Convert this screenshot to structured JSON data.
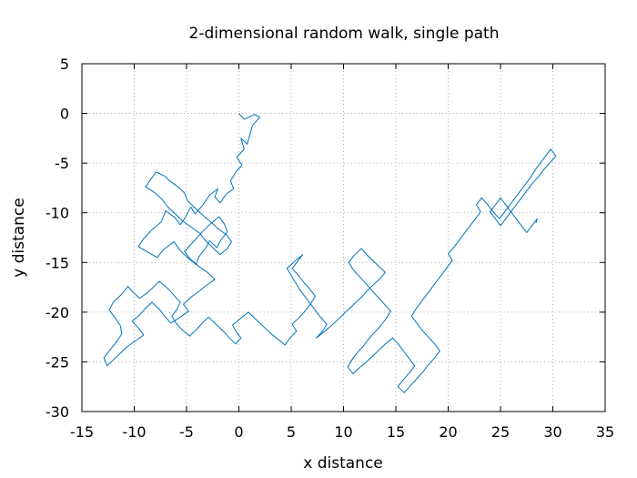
{
  "chart_data": {
    "type": "line",
    "title": "2-dimensional random walk, single path",
    "xlabel": "x distance",
    "ylabel": "y distance",
    "xlim": [
      -15,
      35
    ],
    "ylim": [
      -30,
      5
    ],
    "x_ticks": [
      -15,
      -10,
      -5,
      0,
      5,
      10,
      15,
      20,
      25,
      30,
      35
    ],
    "y_ticks": [
      5,
      0,
      -5,
      -10,
      -15,
      -20,
      -25,
      -30
    ],
    "x_tick_labels": [
      "-15",
      "-10",
      "-5",
      "0",
      "5",
      "10",
      "15",
      "20",
      "25",
      "30",
      "35"
    ],
    "y_tick_labels": [
      "5",
      "0",
      "-5",
      "-10",
      "-15",
      "-20",
      "-25",
      "-30"
    ],
    "grid": true,
    "legend": "none",
    "series_color": "#0072bd",
    "series": [
      {
        "x": [
          0,
          0.5,
          1.5,
          2,
          1.3,
          1,
          0.8,
          0.2,
          0.5,
          -0.2,
          0.3,
          -0.3,
          -0.8,
          -0.5,
          -1.2,
          -1.8,
          -2.3,
          -2.0,
          -2.8,
          -3.5,
          -4.2,
          -4.6,
          -5.2,
          -5.6,
          -6.1,
          -7.0,
          -7.4,
          -8.3,
          -9.1,
          -9.6,
          -8.8,
          -7.8,
          -7.2,
          -6.2,
          -5.6,
          -4.8,
          -4.1,
          -3.8,
          -3.2,
          -2.8,
          -2.1,
          -1.7,
          -1.1,
          -1.4,
          -1.9,
          -2.6,
          -3.5,
          -4.2,
          -4.9,
          -5.2,
          -5.8,
          -6.6,
          -7.1,
          -7.9,
          -8.4,
          -8.9,
          -8.0,
          -7.3,
          -6.8,
          -6.1,
          -5.4,
          -4.6,
          -3.7,
          -3.2,
          -2.5,
          -1.8,
          -1.1,
          -0.7,
          -1.2,
          -2.0,
          -2.6,
          -3.3,
          -3.9,
          -4.6,
          -5.2,
          -4.6,
          -3.8,
          -3.0,
          -2.3,
          -3.1,
          -3.8,
          -4.6,
          -5.3,
          -4.8,
          -5.6,
          -6.5,
          -7.1,
          -7.6,
          -8.3,
          -8.9,
          -9.5,
          -10.2,
          -9.6,
          -9.1,
          -9.9,
          -10.7,
          -11.4,
          -12.1,
          -12.6,
          -12.9,
          -12.3,
          -11.7,
          -11.2,
          -11.3,
          -11.8,
          -12.4,
          -12.0,
          -11.2,
          -10.6,
          -10.2,
          -9.5,
          -8.8,
          -8.2,
          -7.6,
          -6.8,
          -6.2,
          -5.6,
          -5.9,
          -6.4,
          -6.0,
          -5.4,
          -4.7,
          -4.1,
          -3.5,
          -2.9,
          -2.2,
          -1.5,
          -0.9,
          -0.3,
          0.2,
          -0.3,
          -0.6,
          0.2,
          0.9,
          1.6,
          2.3,
          3.0,
          3.7,
          4.4,
          4.9,
          5.5,
          5.1,
          5.8,
          6.4,
          6.9,
          7.3,
          6.8,
          6.2,
          5.7,
          5.1,
          5.6,
          6.1,
          5.3,
          4.6,
          5.0,
          5.4,
          5.8,
          6.3,
          6.8,
          7.3,
          7.8,
          8.4,
          8.0,
          7.4,
          8.1,
          8.8,
          9.4,
          10.0,
          10.6,
          11.2,
          11.8,
          12.3,
          12.9,
          13.5,
          14.0,
          13.4,
          12.8,
          12.2,
          11.7,
          11.0,
          10.5,
          10.9,
          11.5,
          12.1,
          12.7,
          13.3,
          13.9,
          14.5,
          14.1,
          13.6,
          13.0,
          12.4,
          11.9,
          11.3,
          10.8,
          10.4,
          10.9,
          11.5,
          12.2,
          12.8,
          13.4,
          14.0,
          14.7,
          15.3,
          15.8,
          16.3,
          16.8,
          16.3,
          15.7,
          15.2,
          15.8,
          16.4,
          17.0,
          17.6,
          18.1,
          18.7,
          19.2,
          18.7,
          18.1,
          17.5,
          17.0,
          16.5,
          16.9,
          17.4,
          17.9,
          18.4,
          18.9,
          19.4,
          19.9,
          20.4,
          20.0,
          20.6,
          21.1,
          21.6,
          22.1,
          22.6,
          23.1,
          22.7,
          23.2,
          23.8,
          24.3,
          24.9,
          25.4,
          25.9,
          26.4,
          26.9,
          27.4,
          27.9,
          28.3,
          28.8,
          29.3,
          29.8,
          30.3,
          29.7,
          29.1,
          28.6,
          28.0,
          27.5,
          27.0,
          26.5,
          26.0,
          25.5,
          25.0,
          24.5,
          24.0,
          24.5,
          25.0,
          25.5,
          26.0,
          26.5,
          27.0,
          27.5,
          28.0,
          28.5,
          28.4
        ],
        "y": [
          0,
          -0.6,
          -0.1,
          -0.4,
          -1.2,
          -2.3,
          -3.1,
          -2.5,
          -3.6,
          -4.4,
          -5.2,
          -5.9,
          -6.8,
          -7.6,
          -8.1,
          -9.0,
          -8.4,
          -7.6,
          -8.2,
          -9.3,
          -10.1,
          -9.4,
          -10.6,
          -11.2,
          -10.5,
          -9.8,
          -10.9,
          -11.7,
          -12.6,
          -13.4,
          -13.9,
          -14.5,
          -13.7,
          -12.9,
          -13.8,
          -14.6,
          -15.2,
          -14.4,
          -13.6,
          -12.8,
          -13.5,
          -12.7,
          -11.9,
          -11.1,
          -10.4,
          -11.0,
          -10.2,
          -9.5,
          -8.8,
          -8.0,
          -7.4,
          -6.8,
          -6.3,
          -5.9,
          -6.6,
          -7.4,
          -8.0,
          -8.7,
          -9.4,
          -10.1,
          -10.8,
          -11.4,
          -12.1,
          -12.8,
          -13.5,
          -14.2,
          -13.6,
          -12.9,
          -12.2,
          -11.6,
          -11.0,
          -11.7,
          -12.4,
          -13.2,
          -13.9,
          -14.7,
          -15.4,
          -16.0,
          -16.7,
          -17.3,
          -17.9,
          -18.5,
          -19.2,
          -19.9,
          -20.5,
          -21.1,
          -20.4,
          -19.7,
          -19.0,
          -19.6,
          -20.3,
          -20.9,
          -21.6,
          -22.3,
          -22.9,
          -23.5,
          -24.2,
          -24.9,
          -25.4,
          -24.6,
          -23.8,
          -23.0,
          -22.2,
          -21.4,
          -20.6,
          -19.8,
          -19.0,
          -18.2,
          -17.4,
          -17.9,
          -18.6,
          -18.1,
          -17.5,
          -16.9,
          -17.6,
          -18.3,
          -19.0,
          -19.7,
          -20.4,
          -21.1,
          -21.8,
          -22.4,
          -21.8,
          -21.1,
          -20.5,
          -21.2,
          -21.9,
          -22.6,
          -23.2,
          -22.6,
          -21.9,
          -21.3,
          -20.6,
          -20.0,
          -20.7,
          -21.4,
          -22.1,
          -22.7,
          -23.3,
          -22.6,
          -21.9,
          -21.2,
          -20.5,
          -19.8,
          -19.1,
          -18.4,
          -17.7,
          -17.0,
          -16.3,
          -15.6,
          -14.9,
          -14.2,
          -14.9,
          -15.6,
          -16.3,
          -17.0,
          -17.7,
          -18.4,
          -19.1,
          -19.8,
          -20.5,
          -21.2,
          -21.9,
          -22.6,
          -22.0,
          -21.4,
          -20.8,
          -20.2,
          -19.6,
          -19.0,
          -18.4,
          -17.8,
          -17.2,
          -16.6,
          -16.0,
          -15.4,
          -14.8,
          -14.2,
          -13.6,
          -14.3,
          -15.0,
          -15.7,
          -16.4,
          -17.1,
          -17.8,
          -18.5,
          -19.2,
          -19.9,
          -20.6,
          -21.3,
          -22.0,
          -22.7,
          -23.4,
          -24.1,
          -24.8,
          -25.5,
          -26.2,
          -25.6,
          -25.0,
          -24.4,
          -23.8,
          -23.2,
          -22.6,
          -23.3,
          -24.0,
          -24.7,
          -25.4,
          -26.1,
          -26.8,
          -27.5,
          -28.1,
          -27.4,
          -26.7,
          -26.0,
          -25.3,
          -24.6,
          -23.9,
          -23.2,
          -22.5,
          -21.8,
          -21.1,
          -20.4,
          -19.7,
          -19.0,
          -18.3,
          -17.6,
          -16.9,
          -16.2,
          -15.5,
          -14.8,
          -14.1,
          -13.4,
          -12.7,
          -12.0,
          -11.3,
          -10.6,
          -9.9,
          -9.2,
          -8.5,
          -9.2,
          -9.9,
          -10.6,
          -9.9,
          -9.2,
          -8.5,
          -7.8,
          -7.1,
          -6.4,
          -5.7,
          -5.0,
          -4.3,
          -3.6,
          -4.3,
          -5.0,
          -5.7,
          -6.4,
          -7.1,
          -7.8,
          -8.5,
          -9.2,
          -9.9,
          -10.6,
          -11.3,
          -10.6,
          -9.9,
          -9.2,
          -8.5,
          -9.2,
          -9.9,
          -10.6,
          -11.3,
          -12.0,
          -11.3,
          -10.6,
          -11.0
        ]
      }
    ]
  }
}
